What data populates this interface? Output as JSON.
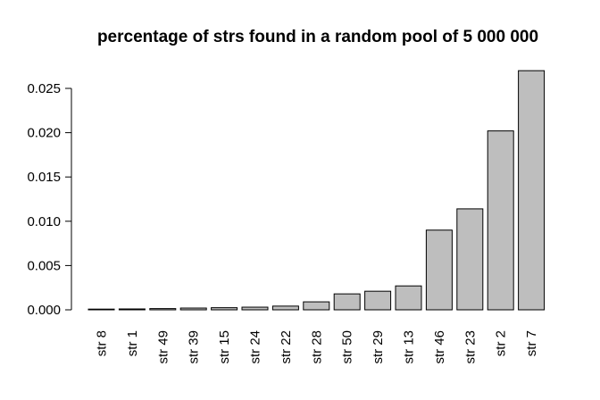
{
  "chart_data": {
    "type": "bar",
    "title": "percentage of strs found in a random pool of 5 000 000",
    "xlabel": "",
    "ylabel": "",
    "categories": [
      "str 8",
      "str 1",
      "str 49",
      "str 39",
      "str 15",
      "str 24",
      "str 22",
      "str 28",
      "str 50",
      "str 29",
      "str 13",
      "str 46",
      "str 23",
      "str 2",
      "str 7"
    ],
    "values": [
      5e-05,
      0.0001,
      0.00014,
      0.0002,
      0.00024,
      0.0003,
      0.00042,
      0.0009,
      0.0018,
      0.0021,
      0.0027,
      0.009,
      0.0114,
      0.0202,
      0.027
    ],
    "ylim": [
      0,
      0.025
    ],
    "yticks": [
      0,
      0.005,
      0.01,
      0.015,
      0.02,
      0.025
    ],
    "ytick_labels": [
      "0.000",
      "0.005",
      "0.010",
      "0.015",
      "0.020",
      "0.025"
    ],
    "bar_color": "#bebebe",
    "grid": false,
    "legend": "none"
  }
}
